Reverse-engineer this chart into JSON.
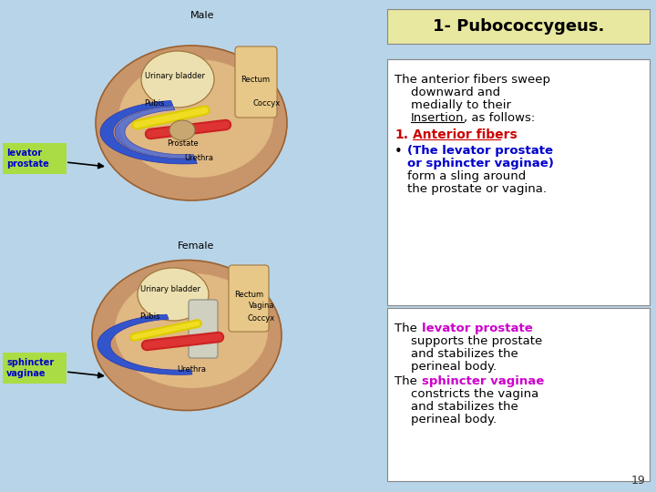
{
  "background_color": "#b8d4e8",
  "title_text": "1- Pubococcygeus.",
  "title_bg": "#e8e8a0",
  "title_color": "#000000",
  "title_fontsize": 13,
  "right_panel_bg": "#ffffff",
  "right_panel_border": "#888888",
  "label_levator": "levator\nprostate",
  "label_levator_bg": "#aadd44",
  "label_sphincter": "sphincter\nvaginae",
  "label_sphincter_bg": "#aadd44",
  "label_fontsize": 7,
  "page_number": "19",
  "fontsize_body": 9.5
}
